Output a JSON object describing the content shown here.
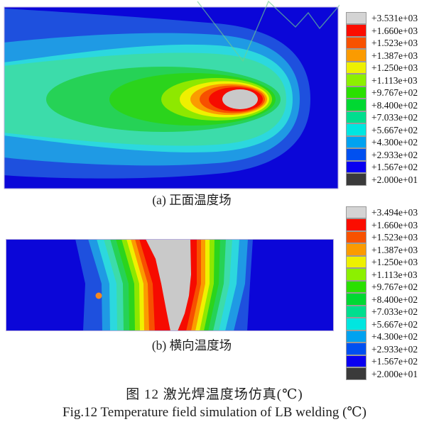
{
  "figure": {
    "caption_a": "(a) 正面温度场",
    "caption_b": "(b) 横向温度场",
    "title_cn": "图 12  激光焊温度场仿真(℃)",
    "title_en": "Fig.12  Temperature field simulation of LB welding (℃)"
  },
  "legend_a": {
    "values": [
      "+3.531e+03",
      "+1.660e+03",
      "+1.523e+03",
      "+1.387e+03",
      "+1.250e+03",
      "+1.113e+03",
      "+9.767e+02",
      "+8.400e+02",
      "+7.033e+02",
      "+5.667e+02",
      "+4.300e+02",
      "+2.933e+02",
      "+1.567e+02",
      "+2.000e+01"
    ]
  },
  "legend_b": {
    "values": [
      "+3.494e+03",
      "+1.660e+03",
      "+1.523e+03",
      "+1.387e+03",
      "+1.250e+03",
      "+1.113e+03",
      "+9.767e+02",
      "+8.400e+02",
      "+7.033e+02",
      "+5.667e+02",
      "+4.300e+02",
      "+2.933e+02",
      "+1.567e+02",
      "+2.000e+01"
    ]
  },
  "palette": {
    "legend_colors": [
      "#d4d4d4",
      "#fb0d00",
      "#f85200",
      "#fb9b00",
      "#eef000",
      "#8cf000",
      "#2ae000",
      "#00d832",
      "#00de8e",
      "#00e6e0",
      "#00a2f0",
      "#0050f0",
      "#0a00f0",
      "#3a3a3a"
    ],
    "bg_navy": "#0b06d8",
    "band_blue": "#1e50de",
    "band_azure": "#1f9ae4",
    "band_cyan": "#2cd8de",
    "band_spring": "#3cdcaa",
    "band_green2": "#26d256",
    "band_green": "#2bd41c",
    "band_chartreuse": "#8ee800",
    "band_yellow": "#f0f000",
    "band_orange": "#fb9b00",
    "band_orangered": "#f75000",
    "band_red": "#f60b00",
    "pool_grey": "#c9c9c9",
    "mesh_line": "#6fcf8f",
    "marker_dot": "#f5871e",
    "plot_border": "#b9aede"
  },
  "chart_data": [
    {
      "type": "heatmap",
      "subtype": "filled-contour-simulation",
      "title": "(a) 正面温度场",
      "unit": "℃",
      "legend_levels": [
        "+3.531e+03",
        "+1.660e+03",
        "+1.523e+03",
        "+1.387e+03",
        "+1.250e+03",
        "+1.113e+03",
        "+9.767e+02",
        "+8.400e+02",
        "+7.033e+02",
        "+5.667e+02",
        "+4.300e+02",
        "+2.933e+02",
        "+1.567e+02",
        "+2.000e+01"
      ],
      "value_range": [
        20,
        3531
      ],
      "legend_position": "right",
      "description": "Top view of laser-beam-welding temperature field: grey molten pool ellipse near right edge surrounded by comet-shaped isotherm bands trailing to the left; pale green mesh zigzag lines at upper right."
    },
    {
      "type": "heatmap",
      "subtype": "filled-contour-simulation",
      "title": "(b) 横向温度场",
      "unit": "℃",
      "legend_levels": [
        "+3.494e+03",
        "+1.660e+03",
        "+1.523e+03",
        "+1.387e+03",
        "+1.250e+03",
        "+1.113e+03",
        "+9.767e+02",
        "+8.400e+02",
        "+7.033e+02",
        "+5.667e+02",
        "+4.300e+02",
        "+2.933e+02",
        "+1.567e+02",
        "+2.000e+01"
      ],
      "value_range": [
        20,
        3494
      ],
      "legend_position": "right",
      "description": "Transverse cross-section: grey nail/funnel-shaped fusion zone at center, vertical rainbow isotherm bands on both sides, orange marker dot at left."
    }
  ]
}
